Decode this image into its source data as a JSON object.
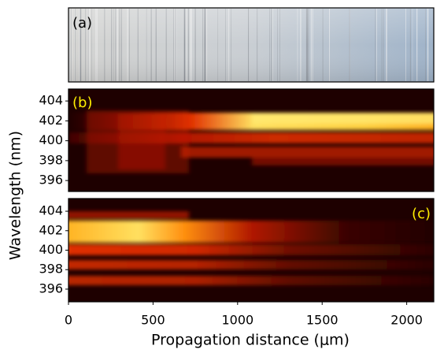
{
  "chart_data": [
    {
      "type": "image",
      "label": "(a)"
    },
    {
      "type": "heatmap",
      "label": "(b)",
      "ylabel": "Wavelength (nm)",
      "ylim": [
        394.9,
        405.2
      ],
      "yticks": [
        396,
        398,
        400,
        402,
        404
      ]
    },
    {
      "type": "heatmap",
      "label": "(c)",
      "xlabel": "Propagation distance (μm)",
      "xlim": [
        0,
        2160
      ],
      "xticks": [
        0,
        500,
        1000,
        1500,
        2000
      ],
      "ylim": [
        394.7,
        405.3
      ],
      "yticks": [
        396,
        398,
        400,
        402,
        404
      ]
    }
  ]
}
